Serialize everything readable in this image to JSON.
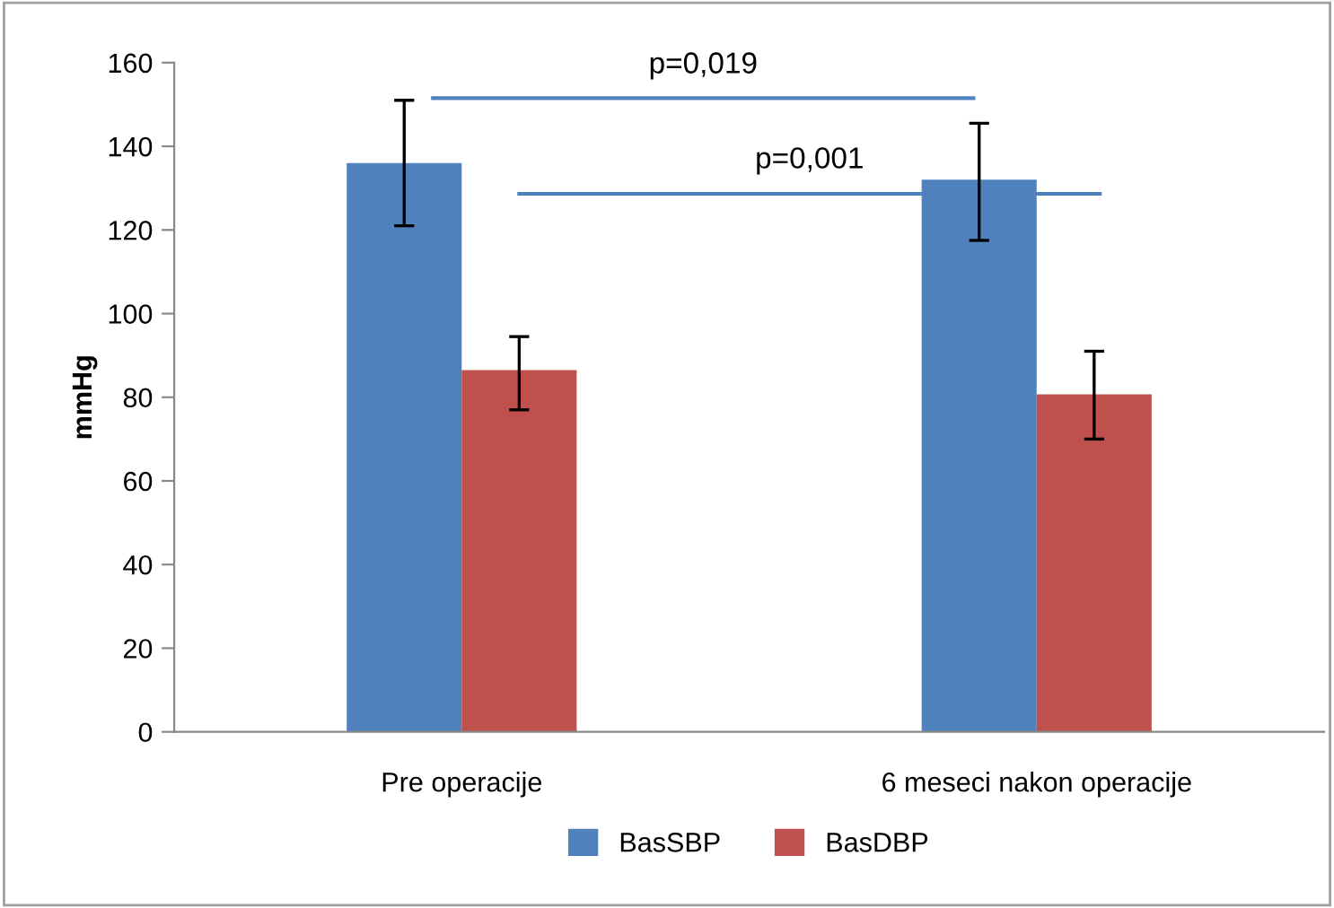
{
  "chart_data": {
    "type": "bar",
    "ylabel": "mmHg",
    "categories": [
      "Pre operacije",
      "6 meseci nakon operacije"
    ],
    "series": [
      {
        "name": "BasSBP",
        "color": "#4f81bd",
        "values": [
          136,
          132
        ],
        "errors": [
          [
            121,
            151
          ],
          [
            117.5,
            145.5
          ]
        ]
      },
      {
        "name": "BasDBP",
        "color": "#c0504d",
        "values": [
          86.5,
          80.7
        ],
        "errors": [
          [
            77,
            94.5
          ],
          [
            70,
            91
          ]
        ]
      }
    ],
    "ylim": [
      0,
      160
    ],
    "yticks": [
      0,
      20,
      40,
      60,
      80,
      100,
      120,
      140,
      160
    ],
    "annotations": [
      "p=0,019",
      "p=0,001"
    ],
    "grid": false,
    "legend": "bottom"
  }
}
